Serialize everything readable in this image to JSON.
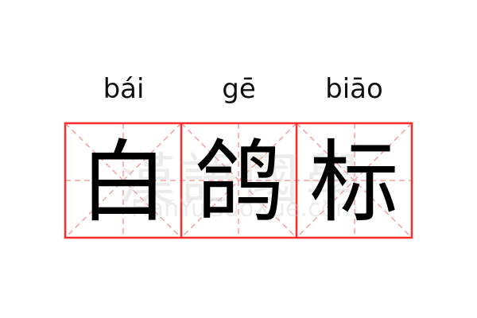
{
  "entries": [
    {
      "pinyin": "bái",
      "character": "白"
    },
    {
      "pinyin": "gē",
      "character": "鸽"
    },
    {
      "pinyin": "biāo",
      "character": "标"
    }
  ],
  "watermark": {
    "chinese": "漢語國學",
    "latin": "HanYuGuoXue.com"
  },
  "colors": {
    "grid_border": "#ff2a2a",
    "guide_lines": "#f5a0a0",
    "text": "#000000"
  }
}
